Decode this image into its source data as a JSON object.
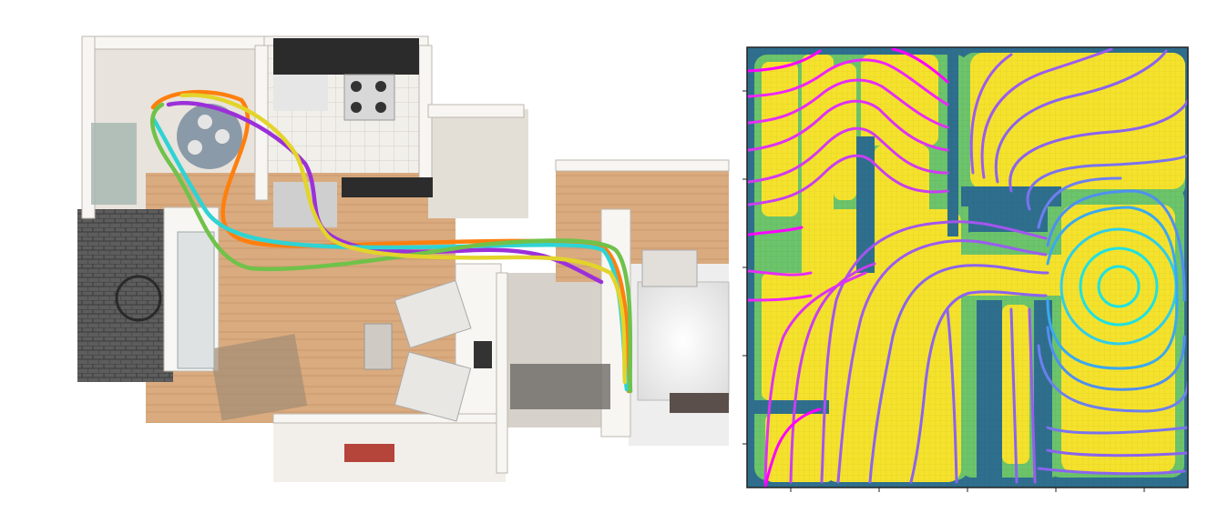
{
  "floorplan": {
    "trajectories": [
      {
        "color": "#ff7f0e"
      },
      {
        "color": "#9b30d9"
      },
      {
        "color": "#2fd3d3"
      },
      {
        "color": "#6fc24a"
      },
      {
        "color": "#e3d42a"
      }
    ]
  },
  "field_map": {
    "colors": {
      "free_space": "#f5e22c",
      "wall": "#2f6f8e",
      "near_wall": "#6cc46b",
      "contour_far": "#ff00ff",
      "contour_mid": "#8a63f0",
      "contour_near": "#1fe1e1",
      "frame": "#222222"
    }
  }
}
